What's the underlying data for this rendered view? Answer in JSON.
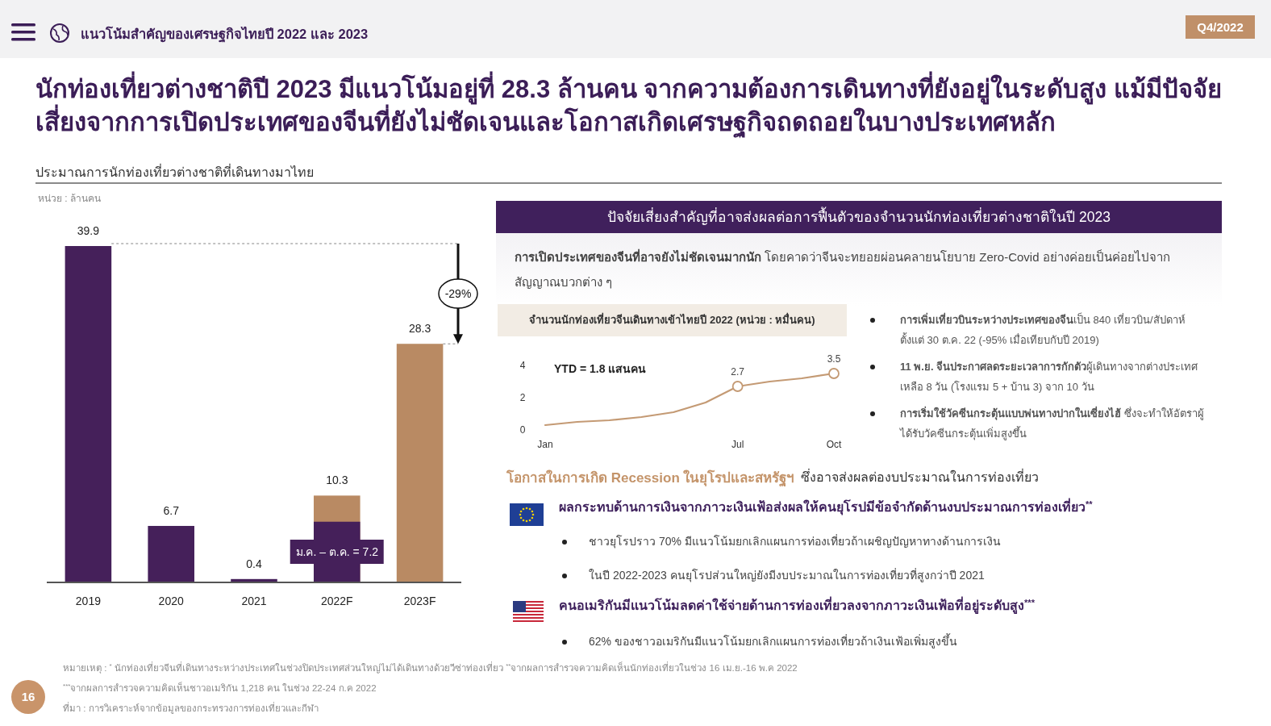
{
  "chart_data": [
    {
      "type": "bar",
      "title": "นักท่องเที่ยวต่างชาติปี 2023 มีแนวโน้มอยู่ที่ 28.3 ล้านคน จากความต้องการเดินทางที่ยังอยู่ในระดับสูง แม้มีปัจจัยเสี่ยงจากการเปิดประเทศของจีนที่ยังไม่ชัดเจนและโอกาสเกิดเศรษฐกิจถดถอยในบางประเทศหลัก",
      "subtitle": "ประมาณการนักท่องเที่ยวต่างชาติที่เดินทางมาไทย",
      "ylabel": "หน่วย : ล้านคน",
      "categories": [
        "2019",
        "2020",
        "2021",
        "2022F",
        "2023F"
      ],
      "series": [
        {
          "color": "#b98a63",
          "values": [
            null,
            null,
            null,
            10.3,
            28.3
          ],
          "value_labels": [
            null,
            null,
            null,
            "10.3",
            "28.3"
          ]
        },
        {
          "color": "#45205a",
          "values": [
            39.9,
            6.7,
            0.4,
            7.2,
            null
          ],
          "value_labels": [
            "39.9",
            "6.7",
            "0.4",
            "ม.ค. – ต.ค. = 7.2",
            null
          ]
        }
      ],
      "annotations": [
        "แนวโน้มสำคัญของเศรษฐกิจไทยปี 2022 และ 2023",
        "Q4/2022",
        "-29%",
        "หมายเหตุ : $^{*}$ นักท่องเที่ยวจีนที่เดินทางระหว่างประเทศในช่วงปิดประเทศส่วนใหญ่ไม่ได้เดินทางด้วยวีซ่าท่องเที่ยว $^{**}$จากผลการสำรวจความคิดเห็นนักท่องเที่ยวในช่วง 16 เม.ย.-16 พ.ค 2022",
        "$^{***}$จากผลการสำรวจความคิดเห็นชาวอเมริกัน 1,218 คน ในช่วง 22-24 ก.ค 2022",
        "ที่มา : การวิเคราะห์จากข้อมูลของกระทรวงการท่องเที่ยวและกีฬา",
        "16"
      ]
    },
    {
      "type": "other",
      "title": "ปัจจัยเสี่ยงสำคัญที่อาจส่งผลต่อการฟื้นตัวของจำนวนนักท่องเที่ยวต่างชาติในปี 2023",
      "annotations": [
        "**การเปิดประเทศของจีนที่อาจยังไม่ชัดเจนมากนัก** โดยคาดว่าจีนจะทยอยผ่อนคลายนโยบาย Zero-Covid อย่างค่อยเป็นค่อยไปจากสัญญาณบวกต่าง ๆ",
        "**การเพิ่มเที่ยวบินระหว่างประเทศของจีน**เป็น 840 เที่ยวบิน/สัปดาห์ ตั้งแต่ 30 ต.ค. 22 (-95% เมื่อเทียบกับปี 2019)",
        "**11 พ.ย. จีนประกาศลดระยะเวลาการกักตัว**ผู้เดินทางจากต่างประเทศ เหลือ 8 วัน (โรงแรม 5 + บ้าน 3) จาก 10 วัน",
        "**การเริ่มใช้วัคซีนกระตุ้นแบบพ่นทางปากในเซี่ยงไฮ้** ซึ่งจะทำให้อัตราผู้ได้รับวัคซีนกระตุ้นเพิ่มสูงขึ้น",
        "โอกาสในการเกิด Recession ในยุโรปและสหรัฐฯ",
        "ซึ่งอาจส่งผลต่องบประมาณในการท่องเที่ยว",
        "ผลกระทบด้านการเงินจากภาวะเงินเฟ้อส่งผลให้คนยุโรปมีข้อจำกัดด้านงบประมาณการท่องเที่ยว$^{**}$",
        "ชาวยุโรปราว 70% มีแนวโน้มยกเลิกแผนการท่องเที่ยวถ้าเผชิญปัญหาทางด้านการเงิน",
        "ในปี 2022-2023 คนยุโรปส่วนใหญ่ยังมีงบประมาณในการท่องเที่ยวที่สูงกว่าปี 2021",
        "คนอเมริกันมีแนวโน้มลดค่าใช้จ่ายด้านการท่องเที่ยวลงจากภาวะเงินเฟ้อที่อยู่ระดับสูง$^{***}$",
        "62% ของชาวอเมริกันมีแนวโน้มยกเลิกแผนการท่องเที่ยวถ้าเงินเฟ้อเพิ่มสูงขึ้น"
      ]
    },
    {
      "type": "line",
      "title": "จำนวนนักท่องเที่ยวจีนเดินทางเข้าไทยปี 2022 (หน่วย : หมื่นคน)",
      "categories": [
        "Jan",
        null,
        null,
        null,
        null,
        null,
        "Jul",
        null,
        null,
        "Oct"
      ],
      "ylim": [
        0,
        4
      ],
      "yticks": [
        0,
        2,
        4
      ],
      "series": [
        {
          "type": "line",
          "color": "#c49a74",
          "values": [
            0.3,
            0.5,
            0.6,
            0.8,
            1.1,
            1.7,
            2.7,
            3.0,
            3.2,
            3.5
          ]
        },
        {
          "type": "scatter",
          "marker": "circle",
          "color": "#c49a74",
          "x": [
            "Jul",
            "Oct"
          ],
          "values": [
            2.7,
            3.5
          ],
          "value_labels": [
            "2.7",
            "3.5"
          ]
        }
      ],
      "annotations": [
        "YTD = 1.8 แสนคน"
      ]
    }
  ]
}
